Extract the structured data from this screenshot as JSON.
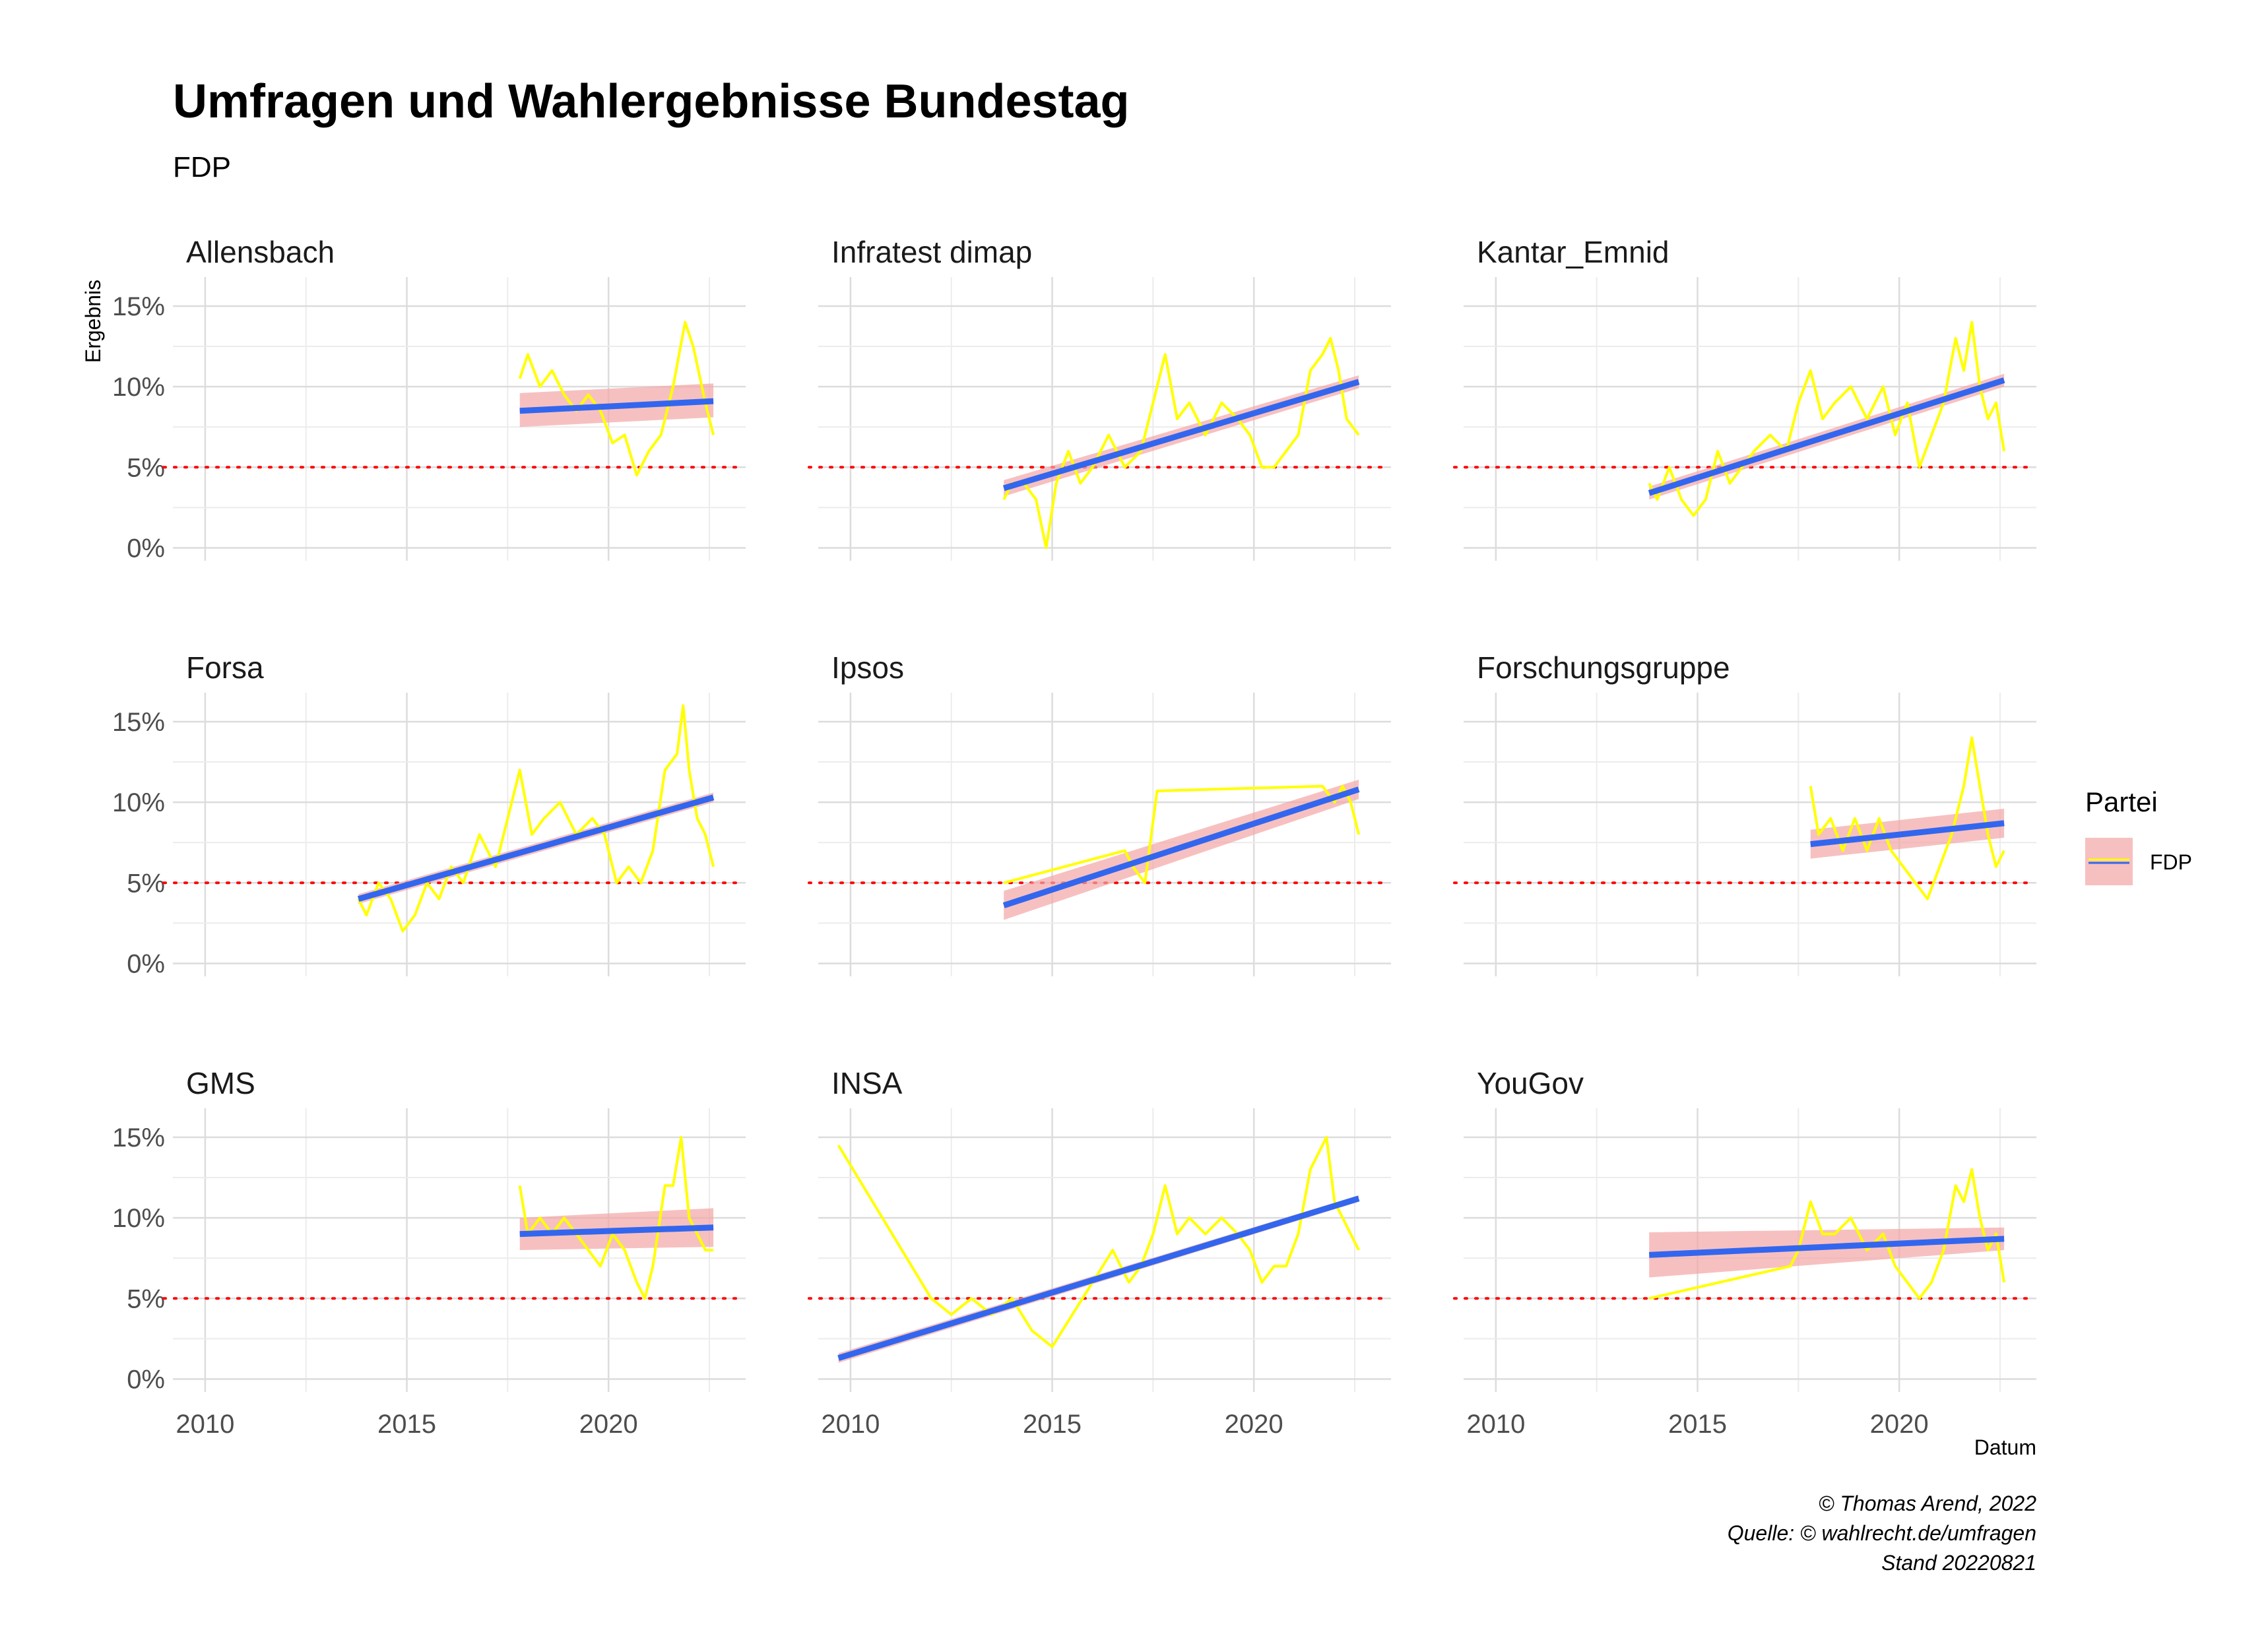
{
  "chart_data": {
    "type": "line",
    "title": "Umfragen und Wahlergebnisse Bundestag",
    "subtitle": "FDP",
    "xlabel": "Datum",
    "ylabel": "Ergebnis",
    "x_ticks": [
      "2010",
      "2015",
      "2020"
    ],
    "y_ticks": [
      "0%",
      "5%",
      "10%",
      "15%"
    ],
    "xlim": [
      2009.2,
      2023.4
    ],
    "ylim": [
      -0.8,
      16.8
    ],
    "threshold": 5,
    "legend": {
      "title": "Partei",
      "entries": [
        "FDP"
      ],
      "position": "right"
    },
    "caption": [
      "© Thomas Arend, 2022",
      "Quelle: © wahlrecht.de/umfragen",
      "Stand 20220821"
    ],
    "colors": {
      "poll_line": "#ffff00",
      "trend_line": "#3366ee",
      "ribbon": "#f4a5a5",
      "threshold": "#ff0000",
      "grid": "#dcdcdc"
    },
    "panels": [
      {
        "name": "Allensbach",
        "x": [
          2017.8,
          2018.0,
          2018.3,
          2018.6,
          2018.9,
          2019.2,
          2019.5,
          2019.8,
          2020.1,
          2020.4,
          2020.7,
          2021.0,
          2021.3,
          2021.6,
          2021.75,
          2021.9,
          2022.1,
          2022.4,
          2022.6
        ],
        "y": [
          10.5,
          12,
          10,
          11,
          9.5,
          8.5,
          9.5,
          8.5,
          6.5,
          7,
          4.5,
          6,
          7,
          10,
          12,
          14,
          12.5,
          9,
          7
        ],
        "trend": [
          [
            2017.8,
            8.5
          ],
          [
            2022.6,
            9.1
          ]
        ],
        "ribbon": [
          [
            9.6,
            7.5
          ],
          [
            10.2,
            8.1
          ]
        ]
      },
      {
        "name": "Infratest dimap",
        "x": [
          2013.8,
          2014.0,
          2014.3,
          2014.6,
          2014.85,
          2015.1,
          2015.4,
          2015.7,
          2016.0,
          2016.4,
          2016.8,
          2017.2,
          2017.5,
          2017.8,
          2018.1,
          2018.4,
          2018.8,
          2019.2,
          2019.6,
          2019.9,
          2020.2,
          2020.5,
          2020.8,
          2021.1,
          2021.4,
          2021.7,
          2021.9,
          2022.1,
          2022.3,
          2022.6
        ],
        "y": [
          3,
          4,
          4,
          3,
          0,
          4,
          6,
          4,
          5,
          7,
          5,
          6,
          9,
          12,
          8,
          9,
          7,
          9,
          8,
          7,
          5,
          5,
          6,
          7,
          11,
          12,
          13,
          11,
          8,
          7
        ],
        "trend": [
          [
            2013.8,
            3.7
          ],
          [
            2022.6,
            10.3
          ]
        ],
        "ribbon": [
          [
            4.2,
            3.2
          ],
          [
            10.7,
            9.9
          ]
        ]
      },
      {
        "name": "Kantar_Emnid",
        "x": [
          2013.8,
          2014.0,
          2014.3,
          2014.6,
          2014.9,
          2015.2,
          2015.5,
          2015.8,
          2016.1,
          2016.4,
          2016.8,
          2017.2,
          2017.5,
          2017.8,
          2018.1,
          2018.4,
          2018.8,
          2019.2,
          2019.6,
          2019.9,
          2020.2,
          2020.5,
          2020.8,
          2021.1,
          2021.4,
          2021.6,
          2021.8,
          2022.0,
          2022.2,
          2022.4,
          2022.6
        ],
        "y": [
          4,
          3,
          5,
          3,
          2,
          3,
          6,
          4,
          5,
          6,
          7,
          6,
          9,
          11,
          8,
          9,
          10,
          8,
          10,
          7,
          9,
          5,
          7,
          9,
          13,
          11,
          14,
          10,
          8,
          9,
          6
        ],
        "trend": [
          [
            2013.8,
            3.4
          ],
          [
            2022.6,
            10.4
          ]
        ],
        "ribbon": [
          [
            3.8,
            3.0
          ],
          [
            10.8,
            10.0
          ]
        ]
      },
      {
        "name": "Forsa",
        "x": [
          2013.8,
          2014.0,
          2014.3,
          2014.6,
          2014.9,
          2015.2,
          2015.5,
          2015.8,
          2016.1,
          2016.4,
          2016.8,
          2017.2,
          2017.5,
          2017.8,
          2018.1,
          2018.4,
          2018.8,
          2019.2,
          2019.6,
          2019.9,
          2020.2,
          2020.5,
          2020.8,
          2021.1,
          2021.4,
          2021.7,
          2021.85,
          2022.0,
          2022.2,
          2022.4,
          2022.6
        ],
        "y": [
          4,
          3,
          5,
          4,
          2,
          3,
          5,
          4,
          6,
          5,
          8,
          6,
          9,
          12,
          8,
          9,
          10,
          8,
          9,
          8,
          5,
          6,
          5,
          7,
          12,
          13,
          16,
          12,
          9,
          8,
          6
        ],
        "trend": [
          [
            2013.8,
            4.0
          ],
          [
            2022.6,
            10.3
          ]
        ],
        "ribbon": [
          [
            4.3,
            3.7
          ],
          [
            10.6,
            10.0
          ]
        ]
      },
      {
        "name": "Ipsos",
        "x": [
          2013.8,
          2016.8,
          2017.0,
          2017.3,
          2017.6,
          2021.7,
          2022.0,
          2022.2,
          2022.4,
          2022.6
        ],
        "y": [
          5,
          7,
          6,
          5,
          10.7,
          11,
          10,
          11,
          10,
          8
        ],
        "trend": [
          [
            2013.8,
            3.6
          ],
          [
            2022.6,
            10.8
          ]
        ],
        "ribbon": [
          [
            4.5,
            2.7
          ],
          [
            11.4,
            10.2
          ]
        ]
      },
      {
        "name": "Forschungsgruppe",
        "x": [
          2017.8,
          2018.0,
          2018.3,
          2018.6,
          2018.9,
          2019.2,
          2019.5,
          2019.8,
          2020.1,
          2020.4,
          2020.7,
          2021.0,
          2021.3,
          2021.6,
          2021.8,
          2022.0,
          2022.2,
          2022.4,
          2022.6
        ],
        "y": [
          11,
          8,
          9,
          7,
          9,
          7,
          9,
          7,
          6,
          5,
          4,
          6,
          8,
          11,
          14,
          11,
          8,
          6,
          7
        ],
        "trend": [
          [
            2017.8,
            7.4
          ],
          [
            2022.6,
            8.7
          ]
        ],
        "ribbon": [
          [
            8.3,
            6.5
          ],
          [
            9.6,
            7.8
          ]
        ]
      },
      {
        "name": "GMS",
        "x": [
          2017.8,
          2018.0,
          2018.3,
          2018.6,
          2018.9,
          2019.2,
          2019.5,
          2019.8,
          2020.1,
          2020.4,
          2020.7,
          2020.9,
          2021.1,
          2021.4,
          2021.6,
          2021.8,
          2022.0,
          2022.2,
          2022.4,
          2022.6
        ],
        "y": [
          12,
          9,
          10,
          9,
          10,
          9,
          8,
          7,
          9,
          8,
          6,
          5,
          7,
          12,
          12,
          15,
          10,
          9,
          8,
          8
        ],
        "trend": [
          [
            2017.8,
            9.0
          ],
          [
            2022.6,
            9.4
          ]
        ],
        "ribbon": [
          [
            10.0,
            8.0
          ],
          [
            10.6,
            8.2
          ]
        ]
      },
      {
        "name": "INSA",
        "x": [
          2009.7,
          2012.0,
          2012.5,
          2013.0,
          2013.5,
          2014.0,
          2014.5,
          2015.0,
          2015.5,
          2016.0,
          2016.5,
          2016.9,
          2017.2,
          2017.5,
          2017.8,
          2018.1,
          2018.4,
          2018.8,
          2019.2,
          2019.6,
          2019.9,
          2020.2,
          2020.5,
          2020.8,
          2021.1,
          2021.4,
          2021.6,
          2021.8,
          2022.0,
          2022.2,
          2022.4,
          2022.6
        ],
        "y": [
          14.5,
          5,
          4,
          5,
          4,
          5,
          3,
          2,
          4,
          6,
          8,
          6,
          7,
          9,
          12,
          9,
          10,
          9,
          10,
          9,
          8,
          6,
          7,
          7,
          9,
          13,
          14,
          15,
          11,
          10,
          9,
          8
        ],
        "trend": [
          [
            2009.7,
            1.3
          ],
          [
            2022.6,
            11.2
          ]
        ],
        "ribbon": [
          [
            1.6,
            1.0
          ],
          [
            11.4,
            11.0
          ]
        ]
      },
      {
        "name": "YouGov",
        "x": [
          2013.8,
          2017.3,
          2017.5,
          2017.8,
          2018.1,
          2018.4,
          2018.8,
          2019.2,
          2019.6,
          2019.9,
          2020.2,
          2020.5,
          2020.8,
          2021.1,
          2021.4,
          2021.6,
          2021.8,
          2022.0,
          2022.2,
          2022.4,
          2022.6
        ],
        "y": [
          5,
          7,
          8,
          11,
          9,
          9,
          10,
          8,
          9,
          7,
          6,
          5,
          6,
          8,
          12,
          11,
          13,
          10,
          8,
          9,
          6
        ],
        "trend": [
          [
            2013.8,
            7.7
          ],
          [
            2022.6,
            8.7
          ]
        ],
        "ribbon": [
          [
            9.1,
            6.3
          ],
          [
            9.4,
            8.0
          ]
        ]
      }
    ]
  }
}
